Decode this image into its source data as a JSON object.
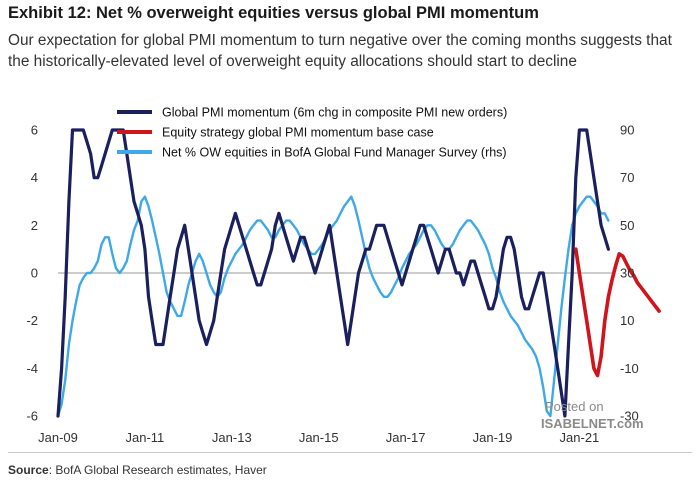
{
  "header": {
    "title": "Exhibit 12: Net % overweight equities versus global PMI momentum",
    "subtitle": "Our expectation for global PMI momentum to turn negative over the coming months suggests that the historically-elevated level of overweight equity allocations should start to decline"
  },
  "footer": {
    "source_label": "Source",
    "source_text": ": BofA Global Research estimates, Haver"
  },
  "watermark": {
    "line1": "Posted on",
    "line2": "ISABELNET.com"
  },
  "colors": {
    "pmi": "#1a1f5e",
    "base_case": "#d0141c",
    "fms": "#3fa9e8"
  },
  "chart_data": {
    "type": "line",
    "title": "Exhibit 12: Net % overweight equities versus global PMI momentum",
    "x_start": 2009.0,
    "x_range": [
      2009.0,
      2021.75
    ],
    "x_ticks": [
      2009,
      2011,
      2013,
      2015,
      2017,
      2019,
      2021
    ],
    "x_tick_labels": [
      "Jan-09",
      "Jan-11",
      "Jan-13",
      "Jan-15",
      "Jan-17",
      "Jan-19",
      "Jan-21"
    ],
    "ylim_left": [
      -6,
      6
    ],
    "yticks_left": [
      -6,
      -4,
      -2,
      0,
      2,
      4,
      6
    ],
    "ylim_right": [
      -30,
      90
    ],
    "yticks_right": [
      -30,
      -10,
      10,
      30,
      50,
      70,
      90
    ],
    "legend": [
      "Global PMI momentum  (6m chg in composite  PMI new orders)",
      "Equity strategy global PMI momentum  base case",
      "Net % OW equities  in BofA Global Fund Manager Survey (rhs)"
    ],
    "series": [
      {
        "name": "Global PMI momentum (6m chg in composite PMI new orders)",
        "axis": "left",
        "step_months": 1,
        "start": 2009.0,
        "values": [
          -6,
          -4,
          -1,
          3,
          6,
          7,
          6,
          6,
          5.5,
          5,
          4,
          4,
          4.5,
          5,
          5.5,
          6,
          6,
          6,
          6,
          5,
          4,
          3,
          2.5,
          2,
          1,
          -1,
          -2,
          -3,
          -3,
          -3,
          -2,
          -1,
          0,
          1,
          1.5,
          2,
          1,
          0,
          -1,
          -2,
          -2.5,
          -3,
          -2.5,
          -2,
          -1,
          0,
          1,
          1.5,
          2,
          2.5,
          2,
          1.5,
          1,
          0.5,
          0,
          -0.5,
          -0.5,
          0,
          0.5,
          1,
          2,
          2.5,
          2,
          1.5,
          1,
          0.5,
          1,
          1.5,
          1.5,
          1,
          0.5,
          0,
          0.5,
          1,
          1.5,
          2,
          1,
          0,
          -1,
          -2,
          -3,
          -2,
          -1,
          0,
          0.5,
          1,
          1,
          1.5,
          2,
          2,
          2,
          1.5,
          1,
          0.5,
          0,
          -0.5,
          0,
          0.5,
          1,
          1.5,
          2,
          2,
          1.5,
          1,
          0.5,
          0,
          0.5,
          1,
          1,
          0.5,
          0,
          0,
          -0.5,
          0,
          0.5,
          0.5,
          0,
          -0.5,
          -1,
          -1.5,
          -1.5,
          -1,
          0,
          1,
          1.5,
          1.5,
          1,
          0,
          -1,
          -1.5,
          -1.5,
          -1,
          -0.5,
          0,
          0,
          -1,
          -2,
          -3,
          -4,
          -5,
          -6,
          -3,
          0,
          4,
          6,
          7,
          6,
          5,
          4,
          3,
          2,
          1.5,
          1
        ]
      },
      {
        "name": "Equity strategy global PMI momentum base case",
        "axis": "left",
        "step_months": 1,
        "start": 2020.9167,
        "values": [
          1,
          0,
          -1,
          -2,
          -3,
          -4,
          -4.3,
          -3.5,
          -2,
          -1,
          -0.3,
          0.3,
          0.8,
          0.7,
          0.4,
          0.1,
          -0.1,
          -0.4,
          -0.6,
          -0.8,
          -1.0,
          -1.2,
          -1.4,
          -1.6
        ]
      },
      {
        "name": "Net % OW equities in BofA Global Fund Manager Survey (rhs)",
        "axis": "right",
        "step_months": 1,
        "start": 2009.0,
        "values": [
          -30,
          -25,
          -15,
          0,
          10,
          18,
          25,
          28,
          30,
          30,
          32,
          35,
          42,
          45,
          45,
          38,
          32,
          30,
          32,
          35,
          42,
          48,
          52,
          60,
          62,
          58,
          52,
          45,
          38,
          30,
          22,
          18,
          15,
          12,
          12,
          18,
          25,
          30,
          35,
          38,
          35,
          30,
          25,
          22,
          20,
          22,
          28,
          32,
          35,
          38,
          40,
          42,
          45,
          48,
          50,
          52,
          52,
          50,
          48,
          45,
          45,
          48,
          50,
          52,
          52,
          50,
          48,
          45,
          42,
          40,
          38,
          38,
          40,
          42,
          45,
          48,
          50,
          52,
          55,
          58,
          60,
          62,
          58,
          52,
          45,
          38,
          32,
          28,
          25,
          22,
          20,
          20,
          22,
          25,
          28,
          32,
          35,
          38,
          40,
          42,
          45,
          48,
          50,
          50,
          48,
          45,
          42,
          40,
          40,
          42,
          45,
          48,
          50,
          52,
          52,
          50,
          48,
          45,
          42,
          38,
          32,
          28,
          22,
          18,
          15,
          12,
          10,
          8,
          5,
          2,
          0,
          -2,
          -5,
          -10,
          -18,
          -28,
          -30,
          -15,
          0,
          15,
          28,
          40,
          50,
          55,
          58,
          60,
          62,
          62,
          60,
          58,
          55,
          55,
          52
        ]
      }
    ]
  }
}
